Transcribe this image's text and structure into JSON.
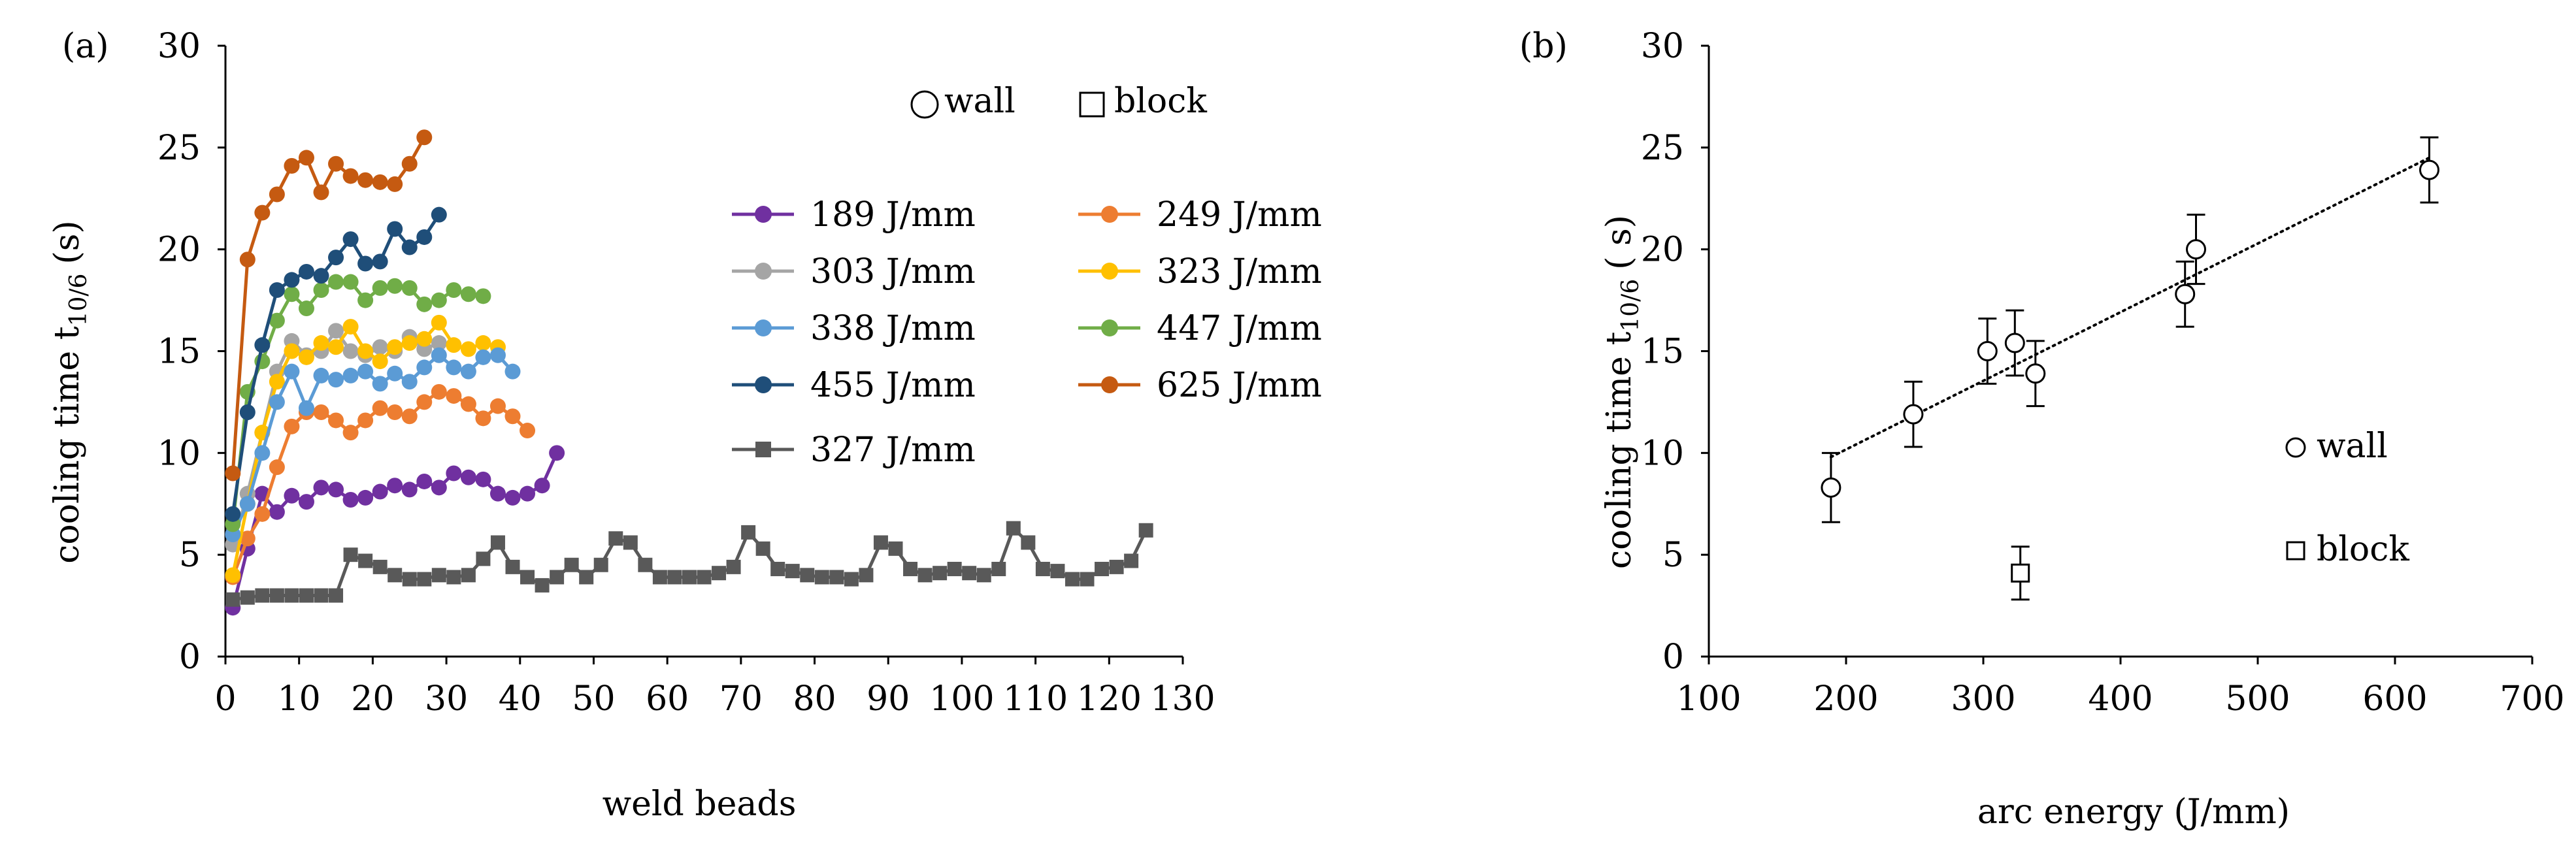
{
  "chart_data": [
    {
      "panel_label": "(a)",
      "type": "line",
      "xlabel": "weld beads",
      "ylabel_main": "cooling time t",
      "ylabel_sub": "10/6",
      "ylabel_unit": "(s)",
      "xlim": [
        0,
        130
      ],
      "ylim": [
        0,
        30
      ],
      "xticks": [
        0,
        10,
        20,
        30,
        40,
        50,
        60,
        70,
        80,
        90,
        100,
        110,
        120,
        130
      ],
      "yticks": [
        0,
        5,
        10,
        15,
        20,
        25,
        30
      ],
      "grid": false,
      "shape_legend": [
        {
          "label": "wall",
          "symbol": "circle"
        },
        {
          "label": "block",
          "symbol": "square"
        }
      ],
      "series": [
        {
          "name": "189 J/mm",
          "color": "#7030a0",
          "marker": "circle",
          "x": [
            1,
            3,
            5,
            7,
            9,
            11,
            13,
            15,
            17,
            19,
            21,
            23,
            25,
            27,
            29,
            31,
            33,
            35,
            37,
            39,
            41,
            43,
            45
          ],
          "y": [
            2.4,
            5.3,
            8.0,
            7.1,
            7.9,
            7.6,
            8.3,
            8.2,
            7.7,
            7.8,
            8.1,
            8.4,
            8.2,
            8.6,
            8.3,
            9.0,
            8.8,
            8.7,
            8.0,
            7.8,
            8.0,
            8.4,
            10.0
          ]
        },
        {
          "name": "249 J/mm",
          "color": "#ed7d31",
          "marker": "circle",
          "x": [
            1,
            3,
            5,
            7,
            9,
            11,
            13,
            15,
            17,
            19,
            21,
            23,
            25,
            27,
            29,
            31,
            33,
            35,
            37,
            39,
            41
          ],
          "y": [
            3.9,
            5.8,
            7.0,
            9.3,
            11.3,
            12.0,
            12.0,
            11.6,
            11.0,
            11.6,
            12.2,
            12.0,
            11.8,
            12.5,
            13.0,
            12.8,
            12.4,
            11.7,
            12.3,
            11.8,
            11.1
          ]
        },
        {
          "name": "303 J/mm",
          "color": "#a5a5a5",
          "marker": "circle",
          "x": [
            1,
            3,
            5,
            7,
            9,
            11,
            13,
            15,
            17,
            19,
            21,
            23,
            25,
            27,
            29
          ],
          "y": [
            5.5,
            8.0,
            11.0,
            14.0,
            15.5,
            14.8,
            15.0,
            16.0,
            15.0,
            14.8,
            15.2,
            15.0,
            15.7,
            15.1,
            15.4
          ]
        },
        {
          "name": "323 J/mm",
          "color": "#ffc000",
          "marker": "circle",
          "x": [
            1,
            3,
            5,
            7,
            9,
            11,
            13,
            15,
            17,
            19,
            21,
            23,
            25,
            27,
            29,
            31,
            33,
            35,
            37
          ],
          "y": [
            4.0,
            7.5,
            11.0,
            13.5,
            15.0,
            14.7,
            15.4,
            15.2,
            16.2,
            15.0,
            14.5,
            15.2,
            15.4,
            15.6,
            16.4,
            15.3,
            15.1,
            15.4,
            15.2
          ]
        },
        {
          "name": "338 J/mm",
          "color": "#5b9bd5",
          "marker": "circle",
          "x": [
            1,
            3,
            5,
            7,
            9,
            11,
            13,
            15,
            17,
            19,
            21,
            23,
            25,
            27,
            29,
            31,
            33,
            35,
            37,
            39
          ],
          "y": [
            6.0,
            7.5,
            10.0,
            12.5,
            14.0,
            12.2,
            13.8,
            13.6,
            13.8,
            14.0,
            13.4,
            13.9,
            13.5,
            14.2,
            14.8,
            14.2,
            14.0,
            14.7,
            14.8,
            14.0
          ]
        },
        {
          "name": "447 J/mm",
          "color": "#70ad47",
          "marker": "circle",
          "x": [
            1,
            3,
            5,
            7,
            9,
            11,
            13,
            15,
            17,
            19,
            21,
            23,
            25,
            27,
            29,
            31,
            33,
            35
          ],
          "y": [
            6.5,
            13.0,
            14.5,
            16.5,
            17.8,
            17.1,
            18.0,
            18.4,
            18.4,
            17.5,
            18.1,
            18.2,
            18.1,
            17.3,
            17.5,
            18.0,
            17.8,
            17.7
          ]
        },
        {
          "name": "455 J/mm",
          "color": "#1f4e79",
          "marker": "circle",
          "x": [
            1,
            3,
            5,
            7,
            9,
            11,
            13,
            15,
            17,
            19,
            21,
            23,
            25,
            27,
            29
          ],
          "y": [
            7.0,
            12.0,
            15.3,
            18.0,
            18.5,
            18.9,
            18.7,
            19.6,
            20.5,
            19.3,
            19.4,
            21.0,
            20.1,
            20.6,
            21.7
          ]
        },
        {
          "name": "625 J/mm",
          "color": "#c55a11",
          "marker": "circle",
          "x": [
            1,
            3,
            5,
            7,
            9,
            11,
            13,
            15,
            17,
            19,
            21,
            23,
            25,
            27
          ],
          "y": [
            9.0,
            19.5,
            21.8,
            22.7,
            24.1,
            24.5,
            22.8,
            24.2,
            23.6,
            23.4,
            23.3,
            23.2,
            24.2,
            25.5
          ]
        },
        {
          "name": "327 J/mm",
          "color": "#595959",
          "marker": "square",
          "x": [
            1,
            3,
            5,
            7,
            9,
            11,
            13,
            15,
            17,
            19,
            21,
            23,
            25,
            27,
            29,
            31,
            33,
            35,
            37,
            39,
            41,
            43,
            45,
            47,
            49,
            51,
            53,
            55,
            57,
            59,
            61,
            63,
            65,
            67,
            69,
            71,
            73,
            75,
            77,
            79,
            81,
            83,
            85,
            87,
            89,
            91,
            93,
            95,
            97,
            99,
            101,
            103,
            105,
            107,
            109,
            111,
            113,
            115,
            117,
            119,
            121,
            123,
            125
          ],
          "y": [
            2.8,
            2.9,
            3.0,
            3.0,
            3.0,
            3.0,
            3.0,
            3.0,
            5.0,
            4.7,
            4.4,
            4.0,
            3.8,
            3.8,
            4.0,
            3.9,
            4.0,
            4.8,
            5.6,
            4.4,
            3.9,
            3.5,
            3.9,
            4.5,
            3.9,
            4.5,
            5.8,
            5.6,
            4.5,
            3.9,
            3.9,
            3.9,
            3.9,
            4.1,
            4.4,
            6.1,
            5.3,
            4.3,
            4.2,
            4.0,
            3.9,
            3.9,
            3.8,
            4.0,
            5.6,
            5.3,
            4.3,
            4.0,
            4.1,
            4.3,
            4.1,
            4.0,
            4.3,
            6.3,
            5.6,
            4.3,
            4.2,
            3.8,
            3.8,
            4.3,
            4.4,
            4.7,
            6.2
          ]
        }
      ]
    },
    {
      "panel_label": "(b)",
      "type": "scatter",
      "xlabel": "arc energy (J/mm)",
      "ylabel_main": "cooling time t",
      "ylabel_sub": "10/6",
      "ylabel_unit": "( s)",
      "xlim": [
        100,
        700
      ],
      "ylim": [
        0,
        30
      ],
      "xticks": [
        100,
        200,
        300,
        400,
        500,
        600,
        700
      ],
      "yticks": [
        0,
        5,
        10,
        15,
        20,
        25,
        30
      ],
      "grid": false,
      "legend": [
        {
          "label": "wall",
          "symbol": "circle"
        },
        {
          "label": "block",
          "symbol": "square"
        }
      ],
      "series": [
        {
          "name": "wall",
          "marker": "circle",
          "points": [
            {
              "x": 189,
              "y": 8.3,
              "err": 1.7
            },
            {
              "x": 249,
              "y": 11.9,
              "err": 1.6
            },
            {
              "x": 303,
              "y": 15.0,
              "err": 1.6
            },
            {
              "x": 323,
              "y": 15.4,
              "err": 1.6
            },
            {
              "x": 338,
              "y": 13.9,
              "err": 1.6
            },
            {
              "x": 447,
              "y": 17.8,
              "err": 1.6
            },
            {
              "x": 455,
              "y": 20.0,
              "err": 1.7
            },
            {
              "x": 625,
              "y": 23.9,
              "err": 1.6
            }
          ]
        },
        {
          "name": "block",
          "marker": "square",
          "points": [
            {
              "x": 327,
              "y": 4.1,
              "err": 1.3
            }
          ]
        }
      ],
      "trendline": {
        "style": "dotted",
        "from": [
          189,
          9.8
        ],
        "to": [
          625,
          24.5
        ]
      }
    }
  ]
}
